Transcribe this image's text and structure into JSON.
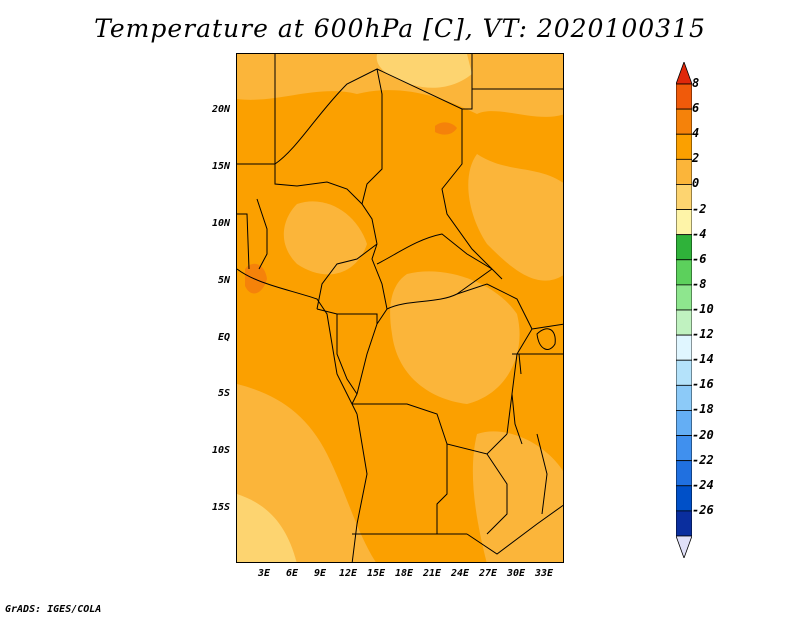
{
  "title": "Temperature at 600hPa [C], VT: 2020100315",
  "credit": "GrADS: IGES/COLA",
  "lat_labels": [
    "20N",
    "15N",
    "10N",
    "5N",
    "EQ",
    "5S",
    "10S",
    "15S"
  ],
  "lon_labels": [
    "3E",
    "6E",
    "9E",
    "12E",
    "15E",
    "18E",
    "21E",
    "24E",
    "27E",
    "30E",
    "33E"
  ],
  "colorbar": {
    "labels": [
      "8",
      "6",
      "4",
      "2",
      "0",
      "-2",
      "-4",
      "-6",
      "-8",
      "-10",
      "-12",
      "-14",
      "-16",
      "-18",
      "-20",
      "-22",
      "-24",
      "-26"
    ],
    "colors": [
      "#e0280a",
      "#f05a0a",
      "#f5820a",
      "#fba000",
      "#fbb53a",
      "#fdd470",
      "#fef4a8",
      "#2fb23a",
      "#5cd05c",
      "#8ee68e",
      "#c0f2c0",
      "#e0f6ff",
      "#b4e2fa",
      "#8ccaf8",
      "#64aef4",
      "#4090ee",
      "#2070e0",
      "#0050c8",
      "#0a2e9e",
      "#101060"
    ],
    "top_arrow_color": "#e0280a",
    "bottom_arrow_color": "#e0e0f8"
  },
  "map_colors": {
    "dominant": "#fba000",
    "warm_0_2": "#fbb53a",
    "cool_neg2_0": "#fdd470",
    "hot_4_6": "#f5820a"
  }
}
